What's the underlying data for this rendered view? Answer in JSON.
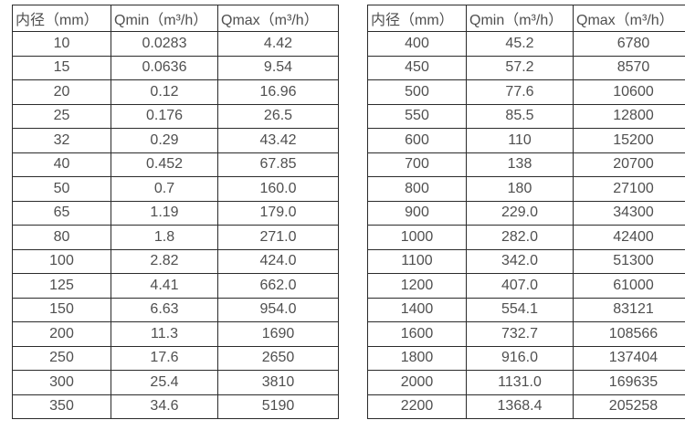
{
  "page": {
    "background": "#ffffff",
    "text_color": "#4f4f4f",
    "border_color": "#2b2b2b"
  },
  "tables": [
    {
      "name": "flow-range-small-diameters",
      "headers": [
        "内径（mm）",
        "Qmin（m³/h）",
        "Qmax（m³/h）"
      ],
      "rows": [
        [
          "10",
          "0.0283",
          "4.42"
        ],
        [
          "15",
          "0.0636",
          "9.54"
        ],
        [
          "20",
          "0.12",
          "16.96"
        ],
        [
          "25",
          "0.176",
          "26.5"
        ],
        [
          "32",
          "0.29",
          "43.42"
        ],
        [
          "40",
          "0.452",
          "67.85"
        ],
        [
          "50",
          "0.7",
          "160.0"
        ],
        [
          "65",
          "1.19",
          "179.0"
        ],
        [
          "80",
          "1.8",
          "271.0"
        ],
        [
          "100",
          "2.82",
          "424.0"
        ],
        [
          "125",
          "4.41",
          "662.0"
        ],
        [
          "150",
          "6.63",
          "954.0"
        ],
        [
          "200",
          "11.3",
          "1690"
        ],
        [
          "250",
          "17.6",
          "2650"
        ],
        [
          "300",
          "25.4",
          "3810"
        ],
        [
          "350",
          "34.6",
          "5190"
        ]
      ]
    },
    {
      "name": "flow-range-large-diameters",
      "headers": [
        "内径（mm）",
        "Qmin（m³/h）",
        "Qmax（m³/h）"
      ],
      "rows": [
        [
          "400",
          "45.2",
          "6780"
        ],
        [
          "450",
          "57.2",
          "8570"
        ],
        [
          "500",
          "77.6",
          "10600"
        ],
        [
          "550",
          "85.5",
          "12800"
        ],
        [
          "600",
          "110",
          "15200"
        ],
        [
          "700",
          "138",
          "20700"
        ],
        [
          "800",
          "180",
          "27100"
        ],
        [
          "900",
          "229.0",
          "34300"
        ],
        [
          "1000",
          "282.0",
          "42400"
        ],
        [
          "1100",
          "342.0",
          "51300"
        ],
        [
          "1200",
          "407.0",
          "61000"
        ],
        [
          "1400",
          "554.1",
          "83121"
        ],
        [
          "1600",
          "732.7",
          "108566"
        ],
        [
          "1800",
          "916.0",
          "137404"
        ],
        [
          "2000",
          "1131.0",
          "169635"
        ],
        [
          "2200",
          "1368.4",
          "205258"
        ]
      ]
    }
  ]
}
